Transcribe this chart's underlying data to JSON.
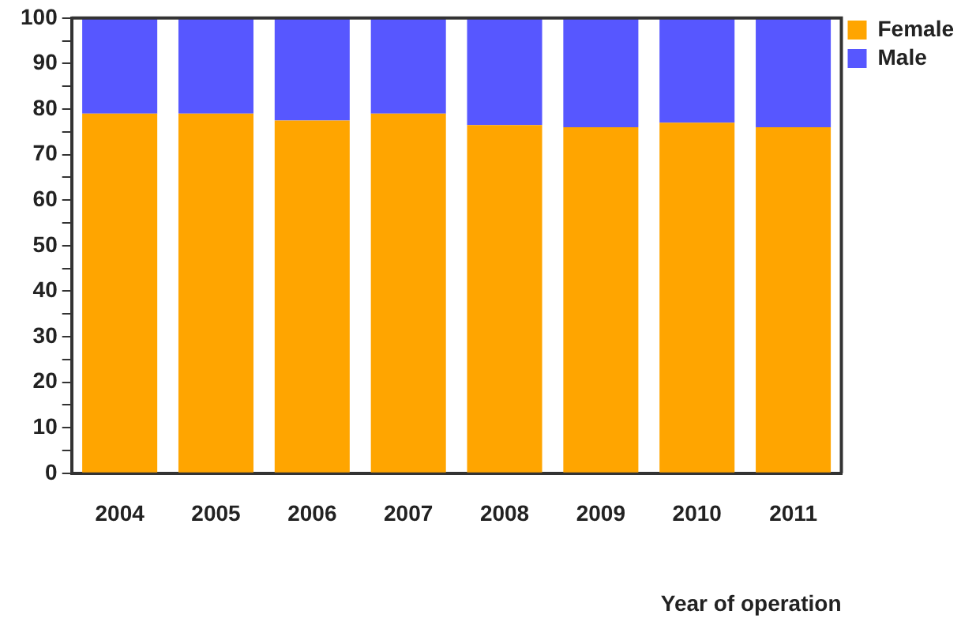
{
  "chart_data": {
    "type": "bar",
    "xlabel": "Year of operation",
    "categories": [
      "2004",
      "2005",
      "2006",
      "2007",
      "2008",
      "2009",
      "2010",
      "2011"
    ],
    "series": [
      {
        "name": "Female",
        "color": "#ffa500",
        "values": [
          79,
          79,
          77.5,
          79,
          76.5,
          76,
          77,
          76
        ]
      },
      {
        "name": "Male",
        "color": "#5757ff",
        "values": [
          21,
          21,
          22.5,
          21,
          23.5,
          24,
          23,
          24
        ]
      }
    ],
    "stacked": true,
    "ylim": [
      0,
      100
    ],
    "yticks": [
      0,
      {
        "value": 5,
        "label": null
      },
      10,
      {
        "value": 15,
        "label": null
      },
      20,
      {
        "value": 25,
        "label": null
      },
      30,
      {
        "value": 35,
        "label": null
      },
      40,
      {
        "value": 45,
        "label": null
      },
      50,
      {
        "value": 55,
        "label": null
      },
      60,
      {
        "value": 65,
        "label": null
      },
      70,
      {
        "value": 75,
        "label": null
      },
      80,
      {
        "value": 85,
        "label": null
      },
      90,
      {
        "value": 95,
        "label": null
      },
      100
    ],
    "grid": false,
    "legend": "top right"
  }
}
